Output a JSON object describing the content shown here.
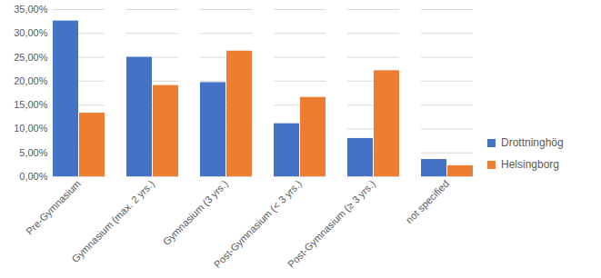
{
  "chart_data": {
    "type": "bar",
    "categories": [
      "Pre-Gymnasium",
      "Gymnasium (max. 2 yrs.)",
      "Gymnasium (3 yrs.)",
      "Post-Gymnasium (< 3 yrs.)",
      "Post-Gymnasium (≥ 3 yrs.)",
      "not specified"
    ],
    "series": [
      {
        "name": "Drottninghög",
        "color": "#4472c4",
        "values": [
          32.6,
          25.0,
          19.7,
          11.1,
          8.0,
          3.6
        ]
      },
      {
        "name": "Helsingborg",
        "color": "#ed7d31",
        "values": [
          13.3,
          19.1,
          26.3,
          16.6,
          22.2,
          2.3
        ]
      }
    ],
    "ylim": [
      0,
      35
    ],
    "yticks": [
      {
        "value": 0,
        "label": "0,00%"
      },
      {
        "value": 5,
        "label": "5,00%"
      },
      {
        "value": 10,
        "label": "10,00%"
      },
      {
        "value": 15,
        "label": "15,00%"
      },
      {
        "value": 20,
        "label": "20,00%"
      },
      {
        "value": 25,
        "label": "25,00%"
      },
      {
        "value": 30,
        "label": "30,00%"
      },
      {
        "value": 35,
        "label": "35,00%"
      }
    ],
    "grid": true,
    "legend": "right"
  }
}
